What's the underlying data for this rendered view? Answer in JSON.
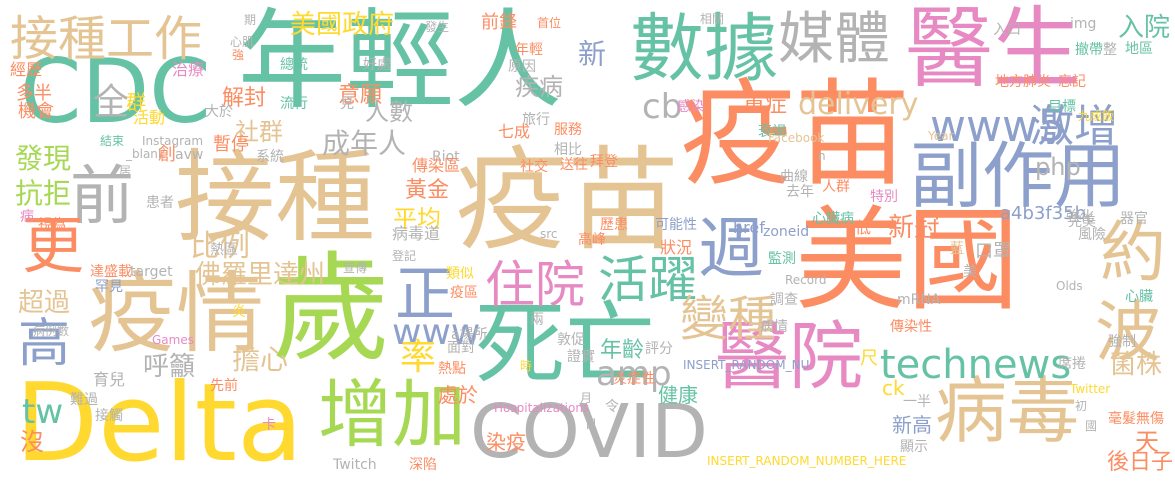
{
  "words": [
    {
      "text": "年輕人",
      "color": "#66c2a5"
    },
    {
      "text": "疫苗",
      "color": "#e5c494"
    },
    {
      "text": "接種",
      "color": "#e5c494"
    },
    {
      "text": "疫苗",
      "color": "#fc8d62"
    },
    {
      "text": "美國",
      "color": "#fc8d62"
    },
    {
      "text": "歲",
      "color": "#a6d854"
    },
    {
      "text": "醫生",
      "color": "#e78ac3"
    },
    {
      "text": "Delta",
      "color": "#ffd92f"
    },
    {
      "text": "死亡",
      "color": "#66c2a5"
    },
    {
      "text": "COVID",
      "color": "#b3b3b3"
    },
    {
      "text": "疫情",
      "color": "#e5c494"
    },
    {
      "text": "CDC",
      "color": "#66c2a5"
    },
    {
      "text": "數據",
      "color": "#66c2a5"
    },
    {
      "text": "增加",
      "color": "#a6d854"
    },
    {
      "text": "醫院",
      "color": "#e78ac3"
    },
    {
      "text": "病毒",
      "color": "#e5c494"
    },
    {
      "text": "副作用",
      "color": "#8da0cb"
    },
    {
      "text": "前",
      "color": "#b3b3b3"
    },
    {
      "text": "媒體",
      "color": "#b3b3b3"
    },
    {
      "text": "週",
      "color": "#8da0cb"
    },
    {
      "text": "更",
      "color": "#fc8d62"
    },
    {
      "text": "接種工作",
      "color": "#e5c494"
    },
    {
      "text": "約",
      "color": "#e5c494"
    },
    {
      "text": "波",
      "color": "#e5c494"
    },
    {
      "text": "住院",
      "color": "#e78ac3"
    },
    {
      "text": "活躍",
      "color": "#66c2a5"
    },
    {
      "text": "變種",
      "color": "#e5c494"
    },
    {
      "text": "正",
      "color": "#8da0cb"
    },
    {
      "text": "高",
      "color": "#8da0cb"
    },
    {
      "text": "www5",
      "color": "#8da0cb"
    },
    {
      "text": "激增",
      "color": "#8da0cb"
    },
    {
      "text": "technews",
      "color": "#66c2a5"
    },
    {
      "text": "www",
      "color": "#8da0cb"
    },
    {
      "text": "delivery",
      "color": "#e5c494"
    },
    {
      "text": "美國政府",
      "color": "#ffd92f"
    },
    {
      "text": "amp",
      "color": "#b3b3b3"
    },
    {
      "text": "cb",
      "color": "#b3b3b3"
    },
    {
      "text": "佛羅里達州",
      "color": "#e5c494"
    },
    {
      "text": "比例",
      "color": "#e5c494"
    },
    {
      "text": "率",
      "color": "#ffd92f"
    },
    {
      "text": "php",
      "color": "#b3b3b3"
    },
    {
      "text": "入院",
      "color": "#66c2a5"
    },
    {
      "text": "成年人",
      "color": "#b3b3b3"
    },
    {
      "text": "發現",
      "color": "#a6d854"
    },
    {
      "text": "抗拒",
      "color": "#a6d854"
    },
    {
      "text": "超過",
      "color": "#e5c494"
    },
    {
      "text": "擔心",
      "color": "#e5c494"
    },
    {
      "text": "呼籲",
      "color": "#b3b3b3"
    },
    {
      "text": "tw",
      "color": "#66c2a5"
    },
    {
      "text": "菌株",
      "color": "#e5c494"
    },
    {
      "text": "人數",
      "color": "#b3b3b3"
    },
    {
      "text": "新",
      "color": "#8da0cb"
    },
    {
      "text": "全",
      "color": "#b3b3b3"
    },
    {
      "text": "群",
      "color": "#ffd92f"
    },
    {
      "text": "解封",
      "color": "#fc8d62"
    },
    {
      "text": "意願",
      "color": "#fc8d62"
    },
    {
      "text": "社群",
      "color": "#e5c494"
    },
    {
      "text": "新冠",
      "color": "#fc8d62"
    },
    {
      "text": "a4b3f35b",
      "color": "#8da0cb"
    },
    {
      "text": "疾病",
      "color": "#b3b3b3"
    },
    {
      "text": "重症",
      "color": "#fc8d62"
    },
    {
      "text": "平均",
      "color": "#ffd92f"
    },
    {
      "text": "黃金",
      "color": "#fc8d62"
    },
    {
      "text": "年齡",
      "color": "#66c2a5"
    },
    {
      "text": "沒",
      "color": "#fc8d62"
    },
    {
      "text": "天",
      "color": "#fc8d62"
    },
    {
      "text": "後日子",
      "color": "#fc8d62"
    },
    {
      "text": "健康",
      "color": "#66c2a5"
    },
    {
      "text": "處於",
      "color": "#fc8d62"
    },
    {
      "text": "染疫",
      "color": "#fc8d62"
    },
    {
      "text": "新高",
      "color": "#8da0cb"
    },
    {
      "text": "ck",
      "color": "#ffd92f"
    },
    {
      "text": "多半",
      "color": "#fc8d62"
    },
    {
      "text": "機會",
      "color": "#fc8d62"
    },
    {
      "text": "經歷",
      "color": "#fc8d62"
    },
    {
      "text": "治療",
      "color": "#e78ac3"
    },
    {
      "text": "活動",
      "color": "#ffd92f"
    },
    {
      "text": "暫停",
      "color": "#fc8d62"
    },
    {
      "text": "流行",
      "color": "#66c2a5"
    },
    {
      "text": "總統",
      "color": "#66c2a5"
    },
    {
      "text": "前鋒",
      "color": "#fc8d62"
    },
    {
      "text": "原因",
      "color": "#b3b3b3"
    },
    {
      "text": "旅行",
      "color": "#b3b3b3"
    },
    {
      "text": "七成",
      "color": "#fc8d62"
    },
    {
      "text": "發生",
      "color": "#b3b3b3"
    },
    {
      "text": "首位",
      "color": "#fc8d62"
    },
    {
      "text": "相關",
      "color": "#b3b3b3"
    },
    {
      "text": "感染",
      "color": "#e78ac3"
    },
    {
      "text": "img",
      "color": "#b3b3b3"
    },
    {
      "text": "入口",
      "color": "#b3b3b3"
    },
    {
      "text": "地方肺炎",
      "color": "#fc8d62"
    },
    {
      "text": "撤帶",
      "color": "#66c2a5"
    },
    {
      "text": "地區",
      "color": "#66c2a5"
    },
    {
      "text": "忘記",
      "color": "#fc8d62"
    },
    {
      "text": "九成飯",
      "color": "#ffd92f"
    },
    {
      "text": "目標",
      "color": "#66c2a5"
    },
    {
      "text": "衰竭",
      "color": "#66c2a5"
    },
    {
      "text": "Instagram",
      "color": "#b3b3b3"
    },
    {
      "text": "_blank",
      "color": "#b3b3b3"
    },
    {
      "text": "結束",
      "color": "#66c2a5"
    },
    {
      "text": "大於",
      "color": "#b3b3b3"
    },
    {
      "text": "Riot",
      "color": "#b3b3b3"
    },
    {
      "text": "傳染區",
      "color": "#fc8d62"
    },
    {
      "text": "服務",
      "color": "#fc8d62"
    },
    {
      "text": "相比",
      "color": "#b3b3b3"
    },
    {
      "text": "拜登",
      "color": "#fc8d62"
    },
    {
      "text": "送往",
      "color": "#fc8d62"
    },
    {
      "text": "社交",
      "color": "#fc8d62"
    },
    {
      "text": "Facebook",
      "color": "#e5c494"
    },
    {
      "text": "Year",
      "color": "#e5c494"
    },
    {
      "text": "創",
      "color": "#fc8d62"
    },
    {
      "text": "avw",
      "color": "#b3b3b3"
    },
    {
      "text": "系統",
      "color": "#b3b3b3"
    },
    {
      "text": "曲線",
      "color": "#b3b3b3"
    },
    {
      "text": "去年",
      "color": "#b3b3b3"
    },
    {
      "text": "人群",
      "color": "#fc8d62"
    },
    {
      "text": "特別",
      "color": "#e78ac3"
    },
    {
      "text": "視為",
      "color": "#fc8d62"
    },
    {
      "text": "患者",
      "color": "#b3b3b3"
    },
    {
      "text": "病",
      "color": "#e78ac3"
    },
    {
      "text": "熱區",
      "color": "#b3b3b3"
    },
    {
      "text": "病毒道",
      "color": "#b3b3b3"
    },
    {
      "text": "src",
      "color": "#b3b3b3"
    },
    {
      "text": "高峰",
      "color": "#fc8d62"
    },
    {
      "text": "可能性",
      "color": "#8da0cb"
    },
    {
      "text": "href",
      "color": "#8da0cb"
    },
    {
      "text": "zoneid",
      "color": "#8da0cb"
    },
    {
      "text": "心臟病",
      "color": "#66c2a5"
    },
    {
      "text": "強化",
      "color": "#b3b3b3"
    },
    {
      "text": "完美",
      "color": "#b3b3b3"
    },
    {
      "text": "器官",
      "color": "#b3b3b3"
    },
    {
      "text": "風險",
      "color": "#b3b3b3"
    },
    {
      "text": "低",
      "color": "#fc8d62"
    },
    {
      "text": "狀況",
      "color": "#fc8d62"
    },
    {
      "text": "監測",
      "color": "#66c2a5"
    },
    {
      "text": "口罩",
      "color": "#b3b3b3"
    },
    {
      "text": "宣傳",
      "color": "#b3b3b3"
    },
    {
      "text": "登記",
      "color": "#b3b3b3"
    },
    {
      "text": "類似",
      "color": "#ffd92f"
    },
    {
      "text": "疫區",
      "color": "#fc8d62"
    },
    {
      "text": "target",
      "color": "#b3b3b3"
    },
    {
      "text": "罕見",
      "color": "#8da0cb"
    },
    {
      "text": "達盛載",
      "color": "#fc8d62"
    },
    {
      "text": "病例數",
      "color": "#b3b3b3"
    },
    {
      "text": "Games",
      "color": "#e78ac3"
    },
    {
      "text": "育兒",
      "color": "#b3b3b3"
    },
    {
      "text": "先前",
      "color": "#fc8d62"
    },
    {
      "text": "面對",
      "color": "#b3b3b3"
    },
    {
      "text": "a場所",
      "color": "#b3b3b3"
    },
    {
      "text": "敦促",
      "color": "#b3b3b3"
    },
    {
      "text": "調查",
      "color": "#b3b3b3"
    },
    {
      "text": "病情",
      "color": "#b3b3b3"
    },
    {
      "text": "傳染性",
      "color": "#fc8d62"
    },
    {
      "text": "mRNA",
      "color": "#b3b3b3"
    },
    {
      "text": "Record",
      "color": "#b3b3b3"
    },
    {
      "text": "心臟",
      "color": "#66c2a5"
    },
    {
      "text": "強制",
      "color": "#b3b3b3"
    },
    {
      "text": "Olds",
      "color": "#b3b3b3"
    },
    {
      "text": "證實",
      "color": "#b3b3b3"
    },
    {
      "text": "炎症性",
      "color": "#fc8d62"
    },
    {
      "text": "INSERT_RANDOM_NU",
      "color": "#8da0cb"
    },
    {
      "text": "Hospitalizations",
      "color": "#e78ac3"
    },
    {
      "text": "INSERT_RANDOM_NUMBER_HERE",
      "color": "#ffd92f"
    },
    {
      "text": "顯示",
      "color": "#b3b3b3"
    },
    {
      "text": "毫髮無傷",
      "color": "#fc8d62"
    },
    {
      "text": "Twitter",
      "color": "#ffd92f"
    },
    {
      "text": "Twitch",
      "color": "#b3b3b3"
    },
    {
      "text": "深陷",
      "color": "#fc8d62"
    },
    {
      "text": "接觸",
      "color": "#b3b3b3"
    },
    {
      "text": "難過",
      "color": "#b3b3b3"
    },
    {
      "text": "尺",
      "color": "#ffd92f"
    },
    {
      "text": "席捲",
      "color": "#b3b3b3"
    },
    {
      "text": "一半",
      "color": "#b3b3b3"
    },
    {
      "text": "熱點",
      "color": "#fc8d62"
    },
    {
      "text": "評分",
      "color": "#b3b3b3"
    },
    {
      "text": "期",
      "color": "#b3b3b3"
    },
    {
      "text": "心肌",
      "color": "#b3b3b3"
    },
    {
      "text": "強",
      "color": "#fc8d62"
    },
    {
      "text": "好處",
      "color": "#b3b3b3"
    },
    {
      "text": "見",
      "color": "#b3b3b3"
    },
    {
      "text": "年輕",
      "color": "#fc8d62"
    },
    {
      "text": "整",
      "color": "#b3b3b3"
    },
    {
      "text": "卡",
      "color": "#e78ac3"
    },
    {
      "text": "令",
      "color": "#b3b3b3"
    },
    {
      "text": "月",
      "color": "#b3b3b3"
    },
    {
      "text": "日",
      "color": "#b3b3b3"
    },
    {
      "text": "時",
      "color": "#ffd92f"
    },
    {
      "text": "兩",
      "color": "#b3b3b3"
    },
    {
      "text": "炎",
      "color": "#ffd92f"
    },
    {
      "text": "居",
      "color": "#b3b3b3"
    },
    {
      "text": "初",
      "color": "#b3b3b3"
    },
    {
      "text": "國",
      "color": "#b3b3b3"
    },
    {
      "text": "美",
      "color": "#b3b3b3"
    },
    {
      "text": "n",
      "color": "#b3b3b3"
    },
    {
      "text": "藍",
      "color": "#e5c494"
    },
    {
      "text": "歷患",
      "color": "#fc8d62"
    }
  ]
}
